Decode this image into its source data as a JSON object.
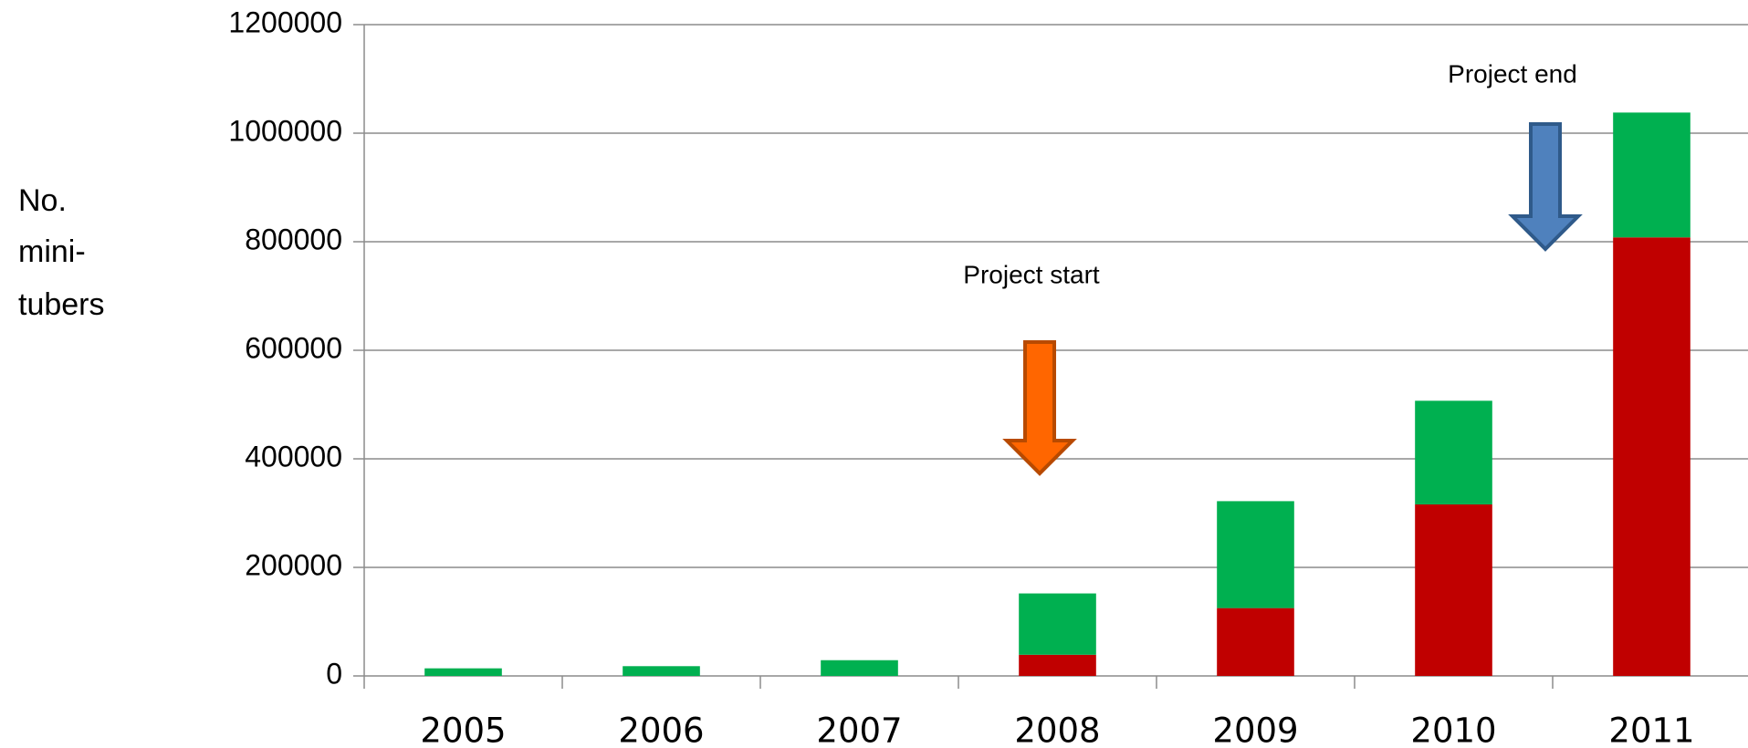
{
  "chart_data": {
    "type": "stacked_bar",
    "ylabel_lines": [
      "No.",
      "mini-",
      "tubers"
    ],
    "categories": [
      "2005",
      "2006",
      "2007",
      "2008",
      "2009",
      "2010",
      "2011"
    ],
    "series": [
      {
        "color": "#c00000",
        "values": [
          0,
          0,
          0,
          39000,
          125000,
          316000,
          808000
        ]
      },
      {
        "color": "#00b050",
        "values": [
          14000,
          18000,
          29000,
          113000,
          197000,
          191000,
          230000
        ]
      }
    ],
    "ylim": [
      0,
      1200000
    ],
    "yticks": [
      0,
      200000,
      400000,
      600000,
      800000,
      1000000,
      1200000
    ],
    "grid": true,
    "annotations": [
      {
        "text": "Project start",
        "arrow_color": "#ff6600"
      },
      {
        "text": "Project end",
        "arrow_color": "#4f81bd"
      }
    ]
  }
}
